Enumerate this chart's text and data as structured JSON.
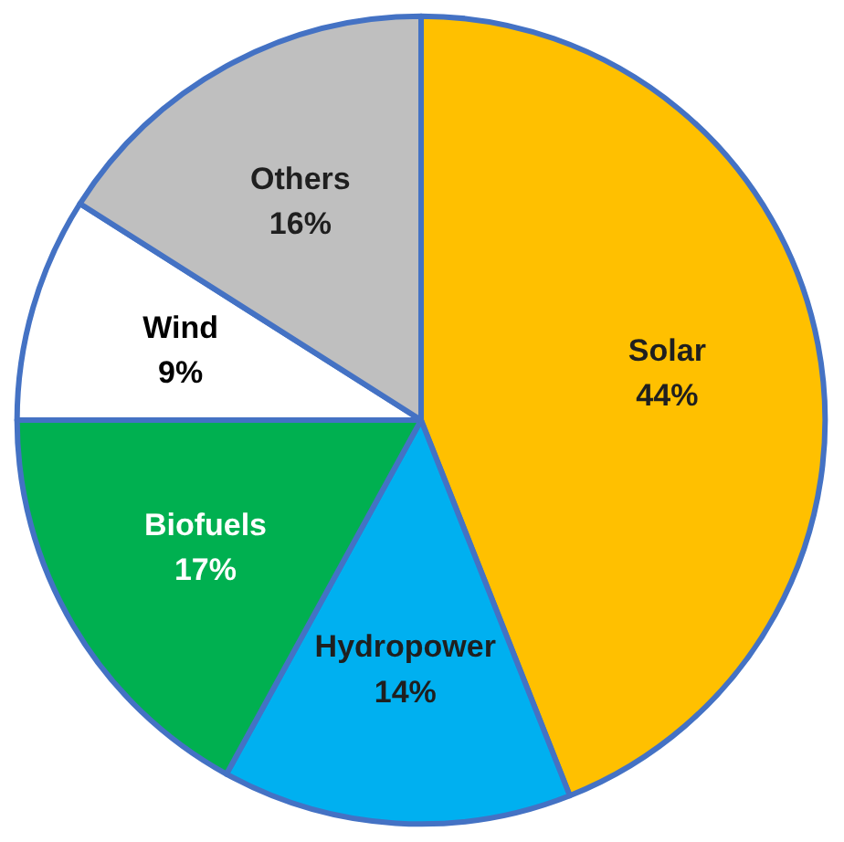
{
  "chart_data": {
    "type": "pie",
    "categories": [
      "Solar",
      "Hydropower",
      "Biofuels",
      "Wind",
      "Others"
    ],
    "values": [
      44,
      14,
      17,
      9,
      16
    ],
    "colors": [
      "#ffc000",
      "#00b0f0",
      "#00b050",
      "#ffffff",
      "#bfbfbf"
    ],
    "value_labels": [
      "44%",
      "14%",
      "17%",
      "9%",
      "16%"
    ]
  }
}
